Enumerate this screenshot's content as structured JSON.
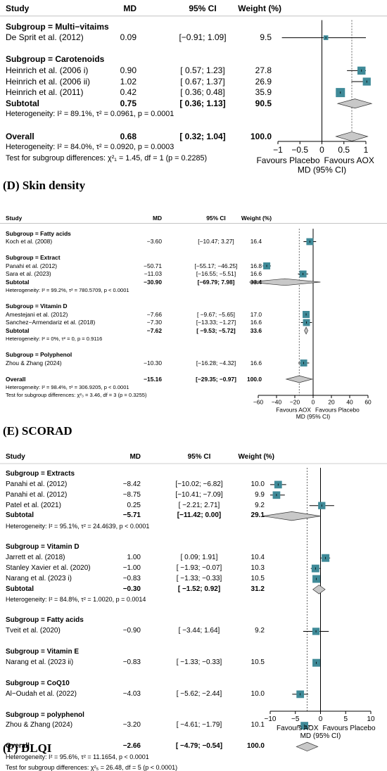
{
  "chart_data": [
    {
      "type": "forest",
      "header": {
        "study": "Study",
        "md": "MD",
        "ci": "95% CI",
        "weight": "Weight (%)"
      },
      "xlim": [
        -1,
        1
      ],
      "ticks": [
        "−1",
        "−0.5",
        "0",
        "0.5",
        "1"
      ],
      "tick_values": [
        -1,
        -0.5,
        0,
        0.5,
        1
      ],
      "null_line": 0,
      "overall_line": 0.68,
      "favours_left": "Favours Placebo",
      "favours_right": "Favours AOX",
      "xlabel": "MD (95% CI)",
      "rows": [
        {
          "kind": "subgroup",
          "text": "Subgroup = Multi−vitaims"
        },
        {
          "kind": "study",
          "study": "De Sprit et al. (2012)",
          "md_text": "0.09",
          "ci_text": "[−0.91; 1.09]",
          "weight_text": "9.5",
          "md": 0.09,
          "lo": -0.91,
          "hi": 1.09,
          "w": 9.5
        },
        {
          "kind": "blank"
        },
        {
          "kind": "subgroup",
          "text": "Subgroup = Carotenoids"
        },
        {
          "kind": "study",
          "study": "Heinrich et al. (2006 i)",
          "md_text": "0.90",
          "ci_text": "[ 0.57; 1.23]",
          "weight_text": "27.8",
          "md": 0.9,
          "lo": 0.57,
          "hi": 1.23,
          "w": 27.8
        },
        {
          "kind": "study",
          "study": "Heinrich et al. (2006 ii)",
          "md_text": "1.02",
          "ci_text": "[ 0.67; 1.37]",
          "weight_text": "26.9",
          "md": 1.02,
          "lo": 0.67,
          "hi": 1.37,
          "w": 26.9
        },
        {
          "kind": "study",
          "study": "Heinrich et al. (2011)",
          "md_text": "0.42",
          "ci_text": "[ 0.36; 0.48]",
          "weight_text": "35.9",
          "md": 0.42,
          "lo": 0.36,
          "hi": 0.48,
          "w": 35.9
        },
        {
          "kind": "subtotal",
          "study": "Subtotal",
          "md_text": "0.75",
          "ci_text": "[ 0.36; 1.13]",
          "weight_text": "90.5",
          "md": 0.75,
          "lo": 0.36,
          "hi": 1.13
        },
        {
          "kind": "het",
          "text": "Heterogeneity: I² = 89.1%, τ² = 0.0961, p = 0.0001"
        },
        {
          "kind": "blank"
        },
        {
          "kind": "overall",
          "study": "Overall",
          "md_text": "0.68",
          "ci_text": "[ 0.32; 1.04]",
          "weight_text": "100.0",
          "md": 0.68,
          "lo": 0.32,
          "hi": 1.04
        },
        {
          "kind": "het",
          "text": "Heterogeneity: I² = 84.0%, τ² = 0.0920, p = 0.0003"
        },
        {
          "kind": "het",
          "text": "Test for subgroup differences: χ²₁ = 1.45, df = 1 (p = 0.2285)"
        }
      ]
    },
    {
      "type": "forest",
      "panel_label": "(D) Skin density",
      "header": {
        "study": "Study",
        "md": "MD",
        "ci": "95% CI",
        "weight": "Weight (%)"
      },
      "xlim": [
        -60,
        60
      ],
      "ticks": [
        "−60",
        "−40",
        "−20",
        "0",
        "20",
        "40",
        "60"
      ],
      "tick_values": [
        -60,
        -40,
        -20,
        0,
        20,
        40,
        60
      ],
      "null_line": 0,
      "overall_line": -15.16,
      "favours_left": "Favours AOX",
      "favours_right": "Favours Placebo",
      "xlabel": "MD (95% CI)",
      "rows": [
        {
          "kind": "subgroup",
          "text": "Subgroup = Fatty acids"
        },
        {
          "kind": "study",
          "study": "Koch et al. (2008)",
          "md_text": "−3.60",
          "ci_text": "[−10.47;  3.27]",
          "weight_text": "16.4",
          "md": -3.6,
          "lo": -10.47,
          "hi": 3.27,
          "w": 16.4
        },
        {
          "kind": "blank"
        },
        {
          "kind": "subgroup",
          "text": "Subgroup = Extract"
        },
        {
          "kind": "study",
          "study": "Panahi et al. (2012)",
          "md_text": "−50.71",
          "ci_text": "[−55.17; −46.25]",
          "weight_text": "16.8",
          "md": -50.71,
          "lo": -55.17,
          "hi": -46.25,
          "w": 16.8
        },
        {
          "kind": "study",
          "study": "Sara et al. (2023)",
          "md_text": "−11.03",
          "ci_text": "[−16.55;  −5.51]",
          "weight_text": "16.6",
          "md": -11.03,
          "lo": -16.55,
          "hi": -5.51,
          "w": 16.6
        },
        {
          "kind": "subtotal",
          "study": "Subtotal",
          "md_text": "−30.90",
          "ci_text": "[−69.79;  7.98]",
          "weight_text": "33.4",
          "md": -30.9,
          "lo": -69.79,
          "hi": 7.98
        },
        {
          "kind": "het",
          "text": "Heterogeneity: I² = 99.2%, τ² = 780.5709, p < 0.0001"
        },
        {
          "kind": "blank"
        },
        {
          "kind": "subgroup",
          "text": "Subgroup = Vitamin D"
        },
        {
          "kind": "study",
          "study": "Amestejani et al. (2012)",
          "md_text": "−7.66",
          "ci_text": "[ −9.67; −5.65]",
          "weight_text": "17.0",
          "md": -7.66,
          "lo": -9.67,
          "hi": -5.65,
          "w": 17.0
        },
        {
          "kind": "study",
          "study": "Sanchez−Armendariz et al. (2018)",
          "md_text": "−7.30",
          "ci_text": "[−13.33; −1.27]",
          "weight_text": "16.6",
          "md": -7.3,
          "lo": -13.33,
          "hi": -1.27,
          "w": 16.6
        },
        {
          "kind": "subtotal",
          "study": "Subtotal",
          "md_text": "−7.62",
          "ci_text": "[ −9.53; −5.72]",
          "weight_text": "33.6",
          "md": -7.62,
          "lo": -9.53,
          "hi": -5.72
        },
        {
          "kind": "het",
          "text": "Heterogeneity: I² = 0%, τ² = 0, p = 0.9116"
        },
        {
          "kind": "blank"
        },
        {
          "kind": "subgroup",
          "text": "Subgroup = Polyphenol"
        },
        {
          "kind": "study",
          "study": "Zhou & Zhang (2024)",
          "md_text": "−10.30",
          "ci_text": "[−16.28; −4.32]",
          "weight_text": "16.6",
          "md": -10.3,
          "lo": -16.28,
          "hi": -4.32,
          "w": 16.6
        },
        {
          "kind": "blank"
        },
        {
          "kind": "overall",
          "study": "Overall",
          "md_text": "−15.16",
          "ci_text": "[−29.35; −0.97]",
          "weight_text": "100.0",
          "md": -15.16,
          "lo": -29.35,
          "hi": -0.97
        },
        {
          "kind": "het",
          "text": "Heterogeneity: I² = 98.4%, τ² = 306.9205, p < 0.0001"
        },
        {
          "kind": "het",
          "text": "Test for subgroup differences: χ²₃ = 3.46, df = 3 (p = 0.3255)"
        }
      ]
    },
    {
      "type": "forest",
      "panel_label": "(E) SCORAD",
      "header": {
        "study": "Study",
        "md": "MD",
        "ci": "95% CI",
        "weight": "Weight (%)"
      },
      "xlim": [
        -10,
        10
      ],
      "ticks": [
        "−10",
        "−5",
        "0",
        "5",
        "10"
      ],
      "tick_values": [
        -10,
        -5,
        0,
        5,
        10
      ],
      "null_line": 0,
      "overall_line": -2.66,
      "favours_left": "Favours AOX",
      "favours_right": "Favours Placebo",
      "xlabel": "MD (95% CI)",
      "rows": [
        {
          "kind": "subgroup",
          "text": "Subgroup = Extracts"
        },
        {
          "kind": "study",
          "study": "Panahi et al. (2012)",
          "md_text": "−8.42",
          "ci_text": "[−10.02; −6.82]",
          "weight_text": "10.0",
          "md": -8.42,
          "lo": -10.02,
          "hi": -6.82,
          "w": 10.0
        },
        {
          "kind": "study",
          "study": "Panahi et al. (2012)",
          "md_text": "−8.75",
          "ci_text": "[−10.41; −7.09]",
          "weight_text": "9.9",
          "md": -8.75,
          "lo": -10.41,
          "hi": -7.09,
          "w": 9.9
        },
        {
          "kind": "study",
          "study": "Patel et al. (2021)",
          "md_text": "0.25",
          "ci_text": "[ −2.21;  2.71]",
          "weight_text": "9.2",
          "md": 0.25,
          "lo": -2.21,
          "hi": 2.71,
          "w": 9.2
        },
        {
          "kind": "subtotal",
          "study": "Subtotal",
          "md_text": "−5.71",
          "ci_text": "[−11.42;  0.00]",
          "weight_text": "29.1",
          "md": -5.71,
          "lo": -11.42,
          "hi": 0.0
        },
        {
          "kind": "het",
          "text": "Heterogeneity: I² = 95.1%, τ² = 24.4639, p < 0.0001"
        },
        {
          "kind": "blank"
        },
        {
          "kind": "subgroup",
          "text": "Subgroup = Vitamin D"
        },
        {
          "kind": "study",
          "study": "Jarrett et al. (2018)",
          "md_text": "1.00",
          "ci_text": "[  0.09;  1.91]",
          "weight_text": "10.4",
          "md": 1.0,
          "lo": 0.09,
          "hi": 1.91,
          "w": 10.4
        },
        {
          "kind": "study",
          "study": "Stanley Xavier et al. (2020)",
          "md_text": "−1.00",
          "ci_text": "[ −1.93; −0.07]",
          "weight_text": "10.3",
          "md": -1.0,
          "lo": -1.93,
          "hi": -0.07,
          "w": 10.3
        },
        {
          "kind": "study",
          "study": "Narang et al. (2023 i)",
          "md_text": "−0.83",
          "ci_text": "[ −1.33; −0.33]",
          "weight_text": "10.5",
          "md": -0.83,
          "lo": -1.33,
          "hi": -0.33,
          "w": 10.5
        },
        {
          "kind": "subtotal",
          "study": "Subtotal",
          "md_text": "−0.30",
          "ci_text": "[ −1.52;  0.92]",
          "weight_text": "31.2",
          "md": -0.3,
          "lo": -1.52,
          "hi": 0.92
        },
        {
          "kind": "het",
          "text": "Heterogeneity: I² = 84.8%, τ² = 1.0020, p = 0.0014"
        },
        {
          "kind": "blank"
        },
        {
          "kind": "subgroup",
          "text": "Subgroup = Fatty acids"
        },
        {
          "kind": "study",
          "study": "Tveit et al. (2020)",
          "md_text": "−0.90",
          "ci_text": "[ −3.44;  1.64]",
          "weight_text": "9.2",
          "md": -0.9,
          "lo": -3.44,
          "hi": 1.64,
          "w": 9.2
        },
        {
          "kind": "blank"
        },
        {
          "kind": "subgroup",
          "text": "Subgroup = Vitamin E"
        },
        {
          "kind": "study",
          "study": "Narang et al. (2023 ii)",
          "md_text": "−0.83",
          "ci_text": "[ −1.33; −0.33]",
          "weight_text": "10.5",
          "md": -0.83,
          "lo": -1.33,
          "hi": -0.33,
          "w": 10.5
        },
        {
          "kind": "blank"
        },
        {
          "kind": "subgroup",
          "text": "Subgroup = CoQ10"
        },
        {
          "kind": "study",
          "study": "Al−Oudah et al. (2022)",
          "md_text": "−4.03",
          "ci_text": "[ −5.62; −2.44]",
          "weight_text": "10.0",
          "md": -4.03,
          "lo": -5.62,
          "hi": -2.44,
          "w": 10.0
        },
        {
          "kind": "blank"
        },
        {
          "kind": "subgroup",
          "text": "Subgroup = polyphenol"
        },
        {
          "kind": "study",
          "study": "Zhou & Zhang (2024)",
          "md_text": "−3.20",
          "ci_text": "[ −4.61; −1.79]",
          "weight_text": "10.1",
          "md": -3.2,
          "lo": -4.61,
          "hi": -1.79,
          "w": 10.1
        },
        {
          "kind": "blank"
        },
        {
          "kind": "overall",
          "study": "Overall",
          "md_text": "−2.66",
          "ci_text": "[ −4.79; −0.54]",
          "weight_text": "100.0",
          "md": -2.66,
          "lo": -4.79,
          "hi": -0.54
        },
        {
          "kind": "het",
          "text": "Heterogeneity: I² = 95.6%, τ² = 11.1654, p < 0.0001"
        },
        {
          "kind": "het",
          "text": "Test for subgroup differences: χ²₅ = 26.48, df = 5 (p < 0.0001)"
        }
      ]
    }
  ],
  "footer_label": "(F) DLQI",
  "colors": {
    "box": "#3f8a98",
    "diamond": "#c8c8c8",
    "line": "#000000"
  }
}
